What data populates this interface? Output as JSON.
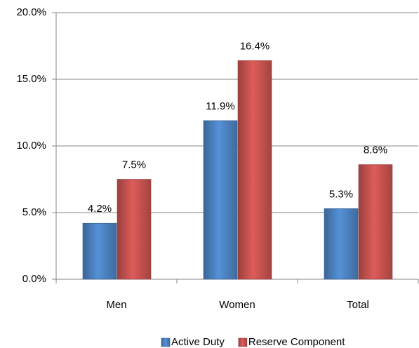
{
  "chart_data": {
    "type": "bar",
    "categories": [
      "Men",
      "Women",
      "Total"
    ],
    "series": [
      {
        "name": "Active Duty",
        "color": "#4a7ebb",
        "values": [
          4.2,
          11.9,
          5.3
        ],
        "value_labels": [
          "4.2%",
          "11.9%",
          "5.3%"
        ]
      },
      {
        "name": "Reserve Component",
        "color": "#c0504d",
        "values": [
          7.5,
          16.4,
          8.6
        ],
        "value_labels": [
          "7.5%",
          "16.4%",
          "8.6%"
        ]
      }
    ],
    "ylim": [
      0,
      20
    ],
    "yticks": [
      {
        "value": 0,
        "label": "0.0%"
      },
      {
        "value": 5,
        "label": "5.0%"
      },
      {
        "value": 10,
        "label": "10.0%"
      },
      {
        "value": 15,
        "label": "15.0%"
      },
      {
        "value": 20,
        "label": "20.0%"
      }
    ],
    "grid": true,
    "legend": "bottom"
  }
}
